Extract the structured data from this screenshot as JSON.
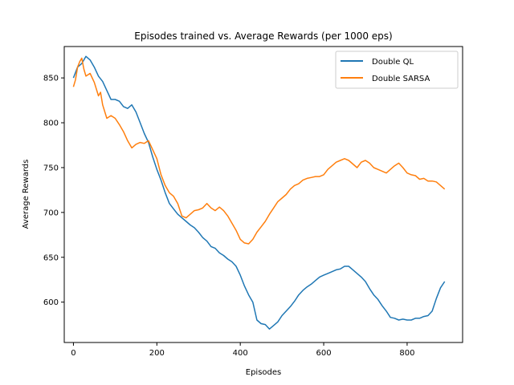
{
  "chart_data": {
    "type": "line",
    "title": "Episodes trained vs. Average Rewards (per 1000 eps)",
    "xlabel": "Episodes",
    "ylabel": "Average Rewards",
    "xlim": [
      -22,
      933
    ],
    "ylim": [
      555,
      885
    ],
    "xticks": [
      0,
      200,
      400,
      600,
      800
    ],
    "yticks": [
      600,
      650,
      700,
      750,
      800,
      850
    ],
    "grid": false,
    "legend_position": "top-right",
    "series": [
      {
        "name": "Double QL",
        "color": "#1f77b4",
        "points": [
          [
            0,
            850
          ],
          [
            10,
            862
          ],
          [
            20,
            866
          ],
          [
            30,
            874
          ],
          [
            40,
            870
          ],
          [
            50,
            862
          ],
          [
            60,
            852
          ],
          [
            70,
            846
          ],
          [
            80,
            836
          ],
          [
            90,
            826
          ],
          [
            100,
            826
          ],
          [
            110,
            824
          ],
          [
            120,
            818
          ],
          [
            130,
            816
          ],
          [
            140,
            820
          ],
          [
            150,
            812
          ],
          [
            160,
            800
          ],
          [
            170,
            788
          ],
          [
            180,
            778
          ],
          [
            190,
            762
          ],
          [
            200,
            748
          ],
          [
            210,
            736
          ],
          [
            220,
            722
          ],
          [
            230,
            710
          ],
          [
            240,
            704
          ],
          [
            250,
            698
          ],
          [
            260,
            694
          ],
          [
            270,
            690
          ],
          [
            280,
            686
          ],
          [
            290,
            683
          ],
          [
            300,
            678
          ],
          [
            310,
            672
          ],
          [
            320,
            668
          ],
          [
            330,
            662
          ],
          [
            340,
            660
          ],
          [
            350,
            655
          ],
          [
            360,
            652
          ],
          [
            370,
            648
          ],
          [
            380,
            645
          ],
          [
            390,
            640
          ],
          [
            400,
            630
          ],
          [
            410,
            618
          ],
          [
            420,
            608
          ],
          [
            430,
            600
          ],
          [
            440,
            580
          ],
          [
            450,
            576
          ],
          [
            460,
            575
          ],
          [
            470,
            570
          ],
          [
            480,
            574
          ],
          [
            490,
            578
          ],
          [
            500,
            585
          ],
          [
            510,
            590
          ],
          [
            520,
            595
          ],
          [
            530,
            601
          ],
          [
            540,
            608
          ],
          [
            550,
            613
          ],
          [
            560,
            617
          ],
          [
            570,
            620
          ],
          [
            580,
            624
          ],
          [
            590,
            628
          ],
          [
            600,
            630
          ],
          [
            610,
            632
          ],
          [
            620,
            634
          ],
          [
            630,
            636
          ],
          [
            640,
            637
          ],
          [
            650,
            640
          ],
          [
            660,
            640
          ],
          [
            670,
            636
          ],
          [
            680,
            632
          ],
          [
            690,
            628
          ],
          [
            700,
            623
          ],
          [
            710,
            615
          ],
          [
            720,
            608
          ],
          [
            730,
            603
          ],
          [
            740,
            596
          ],
          [
            750,
            590
          ],
          [
            760,
            583
          ],
          [
            770,
            582
          ],
          [
            780,
            580
          ],
          [
            790,
            581
          ],
          [
            800,
            580
          ],
          [
            810,
            580
          ],
          [
            820,
            582
          ],
          [
            830,
            582
          ],
          [
            840,
            584
          ],
          [
            850,
            585
          ],
          [
            860,
            590
          ],
          [
            870,
            604
          ],
          [
            880,
            616
          ],
          [
            890,
            623
          ]
        ]
      },
      {
        "name": "Double SARSA",
        "color": "#ff7f0e",
        "points": [
          [
            0,
            840
          ],
          [
            5,
            848
          ],
          [
            10,
            862
          ],
          [
            15,
            868
          ],
          [
            20,
            872
          ],
          [
            25,
            860
          ],
          [
            30,
            852
          ],
          [
            40,
            855
          ],
          [
            50,
            845
          ],
          [
            60,
            830
          ],
          [
            65,
            834
          ],
          [
            70,
            820
          ],
          [
            80,
            805
          ],
          [
            90,
            808
          ],
          [
            100,
            805
          ],
          [
            110,
            798
          ],
          [
            120,
            790
          ],
          [
            130,
            780
          ],
          [
            140,
            772
          ],
          [
            150,
            776
          ],
          [
            160,
            778
          ],
          [
            170,
            777
          ],
          [
            180,
            780
          ],
          [
            190,
            770
          ],
          [
            200,
            760
          ],
          [
            210,
            742
          ],
          [
            220,
            730
          ],
          [
            230,
            722
          ],
          [
            240,
            718
          ],
          [
            250,
            710
          ],
          [
            260,
            696
          ],
          [
            270,
            694
          ],
          [
            280,
            698
          ],
          [
            290,
            702
          ],
          [
            300,
            703
          ],
          [
            310,
            705
          ],
          [
            320,
            710
          ],
          [
            330,
            705
          ],
          [
            340,
            702
          ],
          [
            350,
            706
          ],
          [
            360,
            702
          ],
          [
            370,
            696
          ],
          [
            380,
            688
          ],
          [
            390,
            680
          ],
          [
            400,
            670
          ],
          [
            410,
            666
          ],
          [
            420,
            665
          ],
          [
            430,
            670
          ],
          [
            440,
            678
          ],
          [
            450,
            684
          ],
          [
            460,
            690
          ],
          [
            470,
            698
          ],
          [
            480,
            705
          ],
          [
            490,
            712
          ],
          [
            500,
            716
          ],
          [
            510,
            720
          ],
          [
            520,
            726
          ],
          [
            530,
            730
          ],
          [
            540,
            732
          ],
          [
            550,
            736
          ],
          [
            560,
            738
          ],
          [
            570,
            739
          ],
          [
            580,
            740
          ],
          [
            590,
            740
          ],
          [
            600,
            742
          ],
          [
            610,
            748
          ],
          [
            620,
            752
          ],
          [
            630,
            756
          ],
          [
            640,
            758
          ],
          [
            650,
            760
          ],
          [
            660,
            758
          ],
          [
            670,
            754
          ],
          [
            680,
            750
          ],
          [
            690,
            756
          ],
          [
            700,
            758
          ],
          [
            710,
            755
          ],
          [
            720,
            750
          ],
          [
            730,
            748
          ],
          [
            740,
            746
          ],
          [
            750,
            744
          ],
          [
            760,
            748
          ],
          [
            770,
            752
          ],
          [
            780,
            755
          ],
          [
            790,
            750
          ],
          [
            800,
            744
          ],
          [
            810,
            742
          ],
          [
            820,
            741
          ],
          [
            830,
            737
          ],
          [
            840,
            738
          ],
          [
            850,
            735
          ],
          [
            860,
            735
          ],
          [
            870,
            734
          ],
          [
            880,
            730
          ],
          [
            890,
            726
          ]
        ]
      }
    ]
  }
}
